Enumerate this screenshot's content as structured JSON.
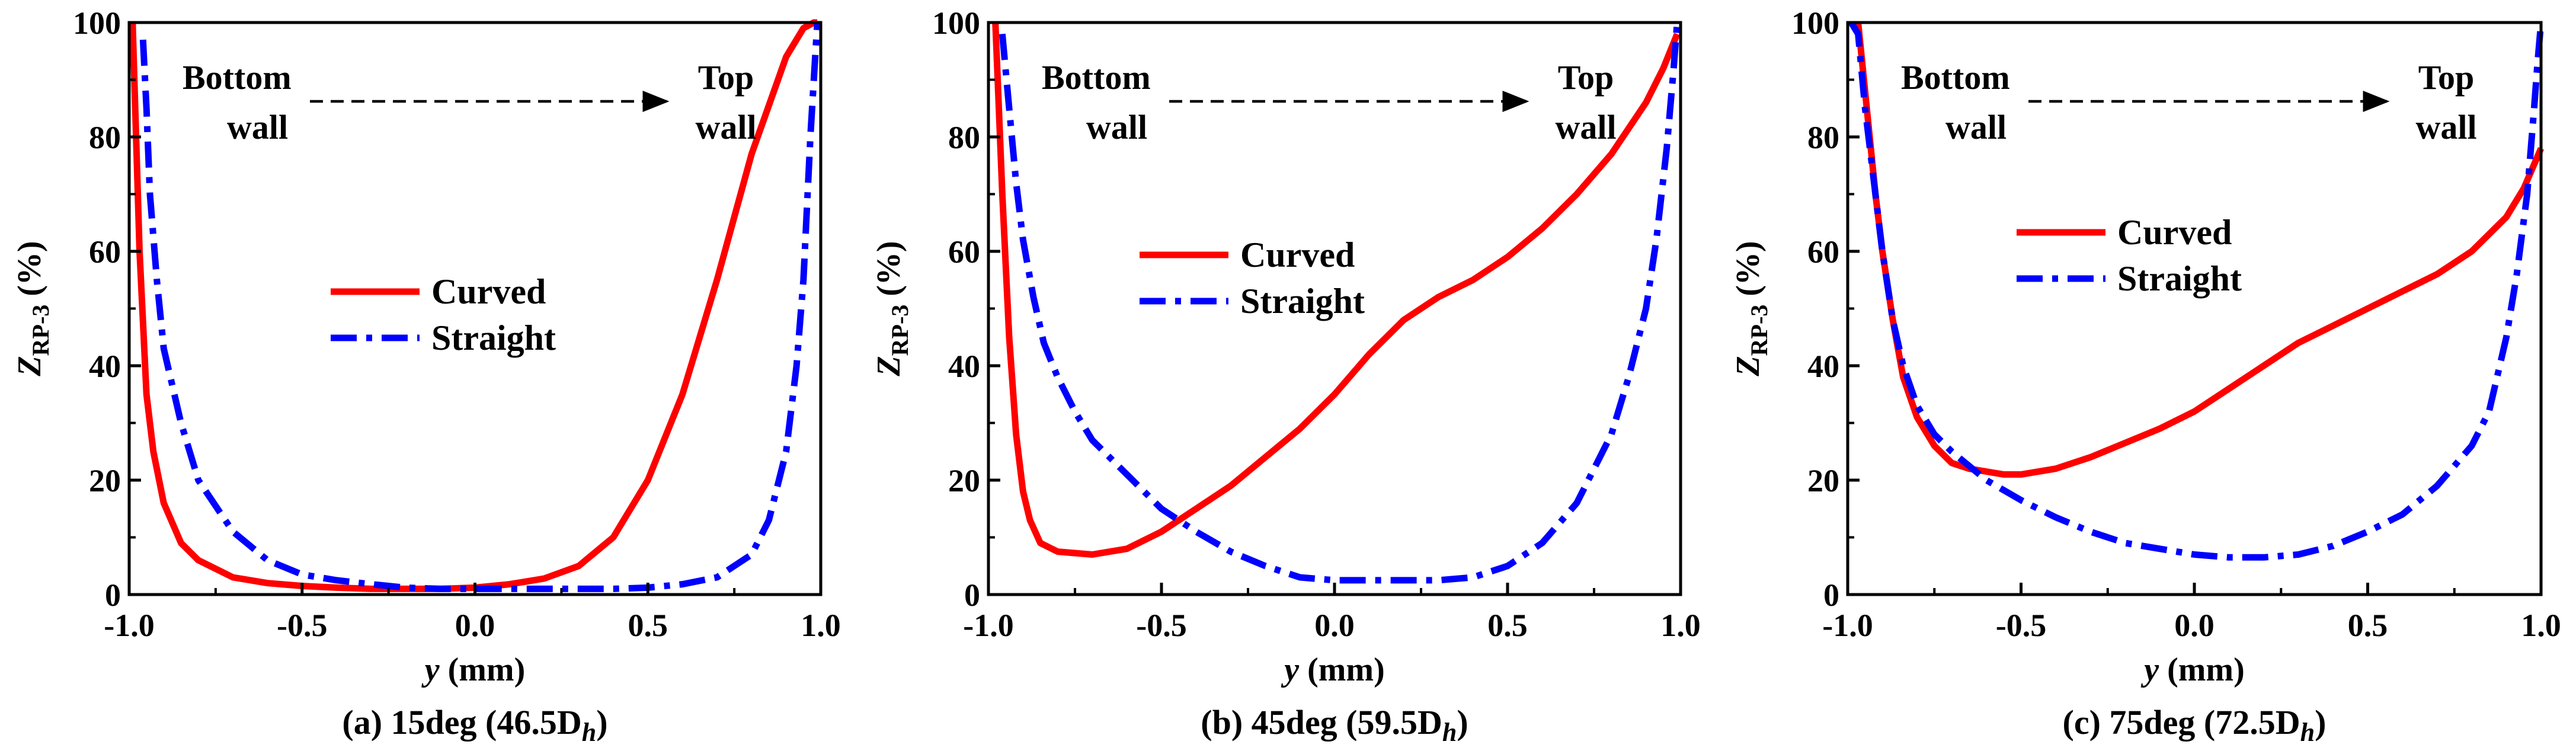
{
  "colors": {
    "curved": "#ff0000",
    "straight": "#0000ff",
    "axis": "#000000",
    "annotation": "#000000"
  },
  "chart_data": [
    {
      "type": "line",
      "panel_label": "(a) 15deg (46.5D",
      "panel_label_sub": "h",
      "panel_label_close": ")",
      "xlabel": "y",
      "xlabel_unit": " (mm)",
      "ylabel_main": "Z",
      "ylabel_sub": "RP-3",
      "ylabel_unit": " (%)",
      "xlim": [
        -1.0,
        1.0
      ],
      "ylim": [
        0,
        100
      ],
      "x_ticks": [
        "-1.0",
        "-0.5",
        "0.0",
        "0.5",
        "1.0"
      ],
      "y_ticks": [
        "0",
        "20",
        "40",
        "60",
        "80",
        "100"
      ],
      "annotation": {
        "left_line1": "Bottom",
        "left_line2": "wall",
        "right_line1": "Top",
        "right_line2": "wall"
      },
      "legend": {
        "position": "center",
        "entries": [
          "Curved",
          "Straight"
        ]
      },
      "series": [
        {
          "name": "Curved",
          "x": [
            -0.99,
            -0.97,
            -0.95,
            -0.93,
            -0.9,
            -0.85,
            -0.8,
            -0.7,
            -0.6,
            -0.5,
            -0.4,
            -0.3,
            -0.2,
            -0.1,
            0.0,
            0.1,
            0.2,
            0.3,
            0.4,
            0.5,
            0.6,
            0.7,
            0.8,
            0.9,
            0.95,
            0.98,
            0.99
          ],
          "y": [
            100,
            60,
            35,
            25,
            16,
            9,
            6,
            3,
            2,
            1.5,
            1.2,
            1.0,
            1.0,
            1.0,
            1.2,
            1.8,
            2.8,
            5,
            10,
            20,
            35,
            55,
            77,
            94,
            99,
            100,
            100
          ]
        },
        {
          "name": "Straight",
          "x": [
            -0.96,
            -0.95,
            -0.94,
            -0.92,
            -0.9,
            -0.85,
            -0.8,
            -0.7,
            -0.6,
            -0.5,
            -0.4,
            -0.3,
            -0.2,
            -0.1,
            0.0,
            0.1,
            0.2,
            0.3,
            0.4,
            0.5,
            0.6,
            0.7,
            0.8,
            0.85,
            0.9,
            0.93,
            0.95,
            0.97,
            0.985,
            0.99
          ],
          "y": [
            97,
            85,
            70,
            55,
            43,
            30,
            20,
            11,
            6,
            3.5,
            2.5,
            1.8,
            1.2,
            1.0,
            1.0,
            1.0,
            1.0,
            1.0,
            1.0,
            1.2,
            1.8,
            3,
            7,
            13,
            25,
            40,
            55,
            80,
            95,
            100
          ]
        }
      ]
    },
    {
      "type": "line",
      "panel_label": "(b) 45deg (59.5D",
      "panel_label_sub": "h",
      "panel_label_close": ")",
      "xlabel": "y",
      "xlabel_unit": " (mm)",
      "ylabel_main": "Z",
      "ylabel_sub": "RP-3",
      "ylabel_unit": " (%)",
      "xlim": [
        -1.0,
        1.0
      ],
      "ylim": [
        0,
        100
      ],
      "x_ticks": [
        "-1.0",
        "-0.5",
        "0.0",
        "0.5",
        "1.0"
      ],
      "y_ticks": [
        "0",
        "20",
        "40",
        "60",
        "80",
        "100"
      ],
      "annotation": {
        "left_line1": "Bottom",
        "left_line2": "wall",
        "right_line1": "Top",
        "right_line2": "wall"
      },
      "legend": {
        "position": "center",
        "entries": [
          "Curved",
          "Straight"
        ]
      },
      "series": [
        {
          "name": "Curved",
          "x": [
            -0.98,
            -0.96,
            -0.94,
            -0.92,
            -0.9,
            -0.88,
            -0.85,
            -0.8,
            -0.7,
            -0.6,
            -0.5,
            -0.4,
            -0.3,
            -0.2,
            -0.1,
            0.0,
            0.1,
            0.2,
            0.3,
            0.4,
            0.5,
            0.6,
            0.7,
            0.8,
            0.9,
            0.95,
            0.99
          ],
          "y": [
            100,
            70,
            45,
            28,
            18,
            13,
            9,
            7.5,
            7,
            8,
            11,
            15,
            19,
            24,
            29,
            35,
            42,
            48,
            52,
            55,
            59,
            64,
            70,
            77,
            86,
            92,
            98
          ]
        },
        {
          "name": "Straight",
          "x": [
            -0.96,
            -0.94,
            -0.92,
            -0.9,
            -0.87,
            -0.84,
            -0.8,
            -0.75,
            -0.7,
            -0.6,
            -0.5,
            -0.4,
            -0.3,
            -0.2,
            -0.1,
            0.0,
            0.1,
            0.2,
            0.3,
            0.4,
            0.5,
            0.6,
            0.7,
            0.8,
            0.85,
            0.9,
            0.93,
            0.96,
            0.98,
            0.99
          ],
          "y": [
            98,
            85,
            72,
            62,
            52,
            44,
            38,
            32,
            27,
            21,
            15,
            11,
            7.5,
            5,
            3,
            2.5,
            2.5,
            2.5,
            2.5,
            3,
            5,
            9,
            16,
            28,
            38,
            50,
            62,
            78,
            92,
            100
          ]
        }
      ]
    },
    {
      "type": "line",
      "panel_label": "(c) 75deg (72.5D",
      "panel_label_sub": "h",
      "panel_label_close": ")",
      "xlabel": "y",
      "xlabel_unit": " (mm)",
      "ylabel_main": "Z",
      "ylabel_sub": "RP-3",
      "ylabel_unit": " (%)",
      "xlim": [
        -1.0,
        1.0
      ],
      "ylim": [
        0,
        100
      ],
      "x_ticks": [
        "-1.0",
        "-0.5",
        "0.0",
        "0.5",
        "1.0"
      ],
      "y_ticks": [
        "0",
        "20",
        "40",
        "60",
        "80",
        "100"
      ],
      "annotation": {
        "left_line1": "Bottom",
        "left_line2": "wall",
        "right_line1": "Top",
        "right_line2": "wall"
      },
      "legend": {
        "position": "center",
        "entries": [
          "Curved",
          "Straight"
        ]
      },
      "series": [
        {
          "name": "Curved",
          "x": [
            -0.97,
            -0.95,
            -0.92,
            -0.9,
            -0.87,
            -0.84,
            -0.8,
            -0.75,
            -0.7,
            -0.65,
            -0.6,
            -0.55,
            -0.5,
            -0.4,
            -0.3,
            -0.2,
            -0.1,
            0.0,
            0.1,
            0.2,
            0.3,
            0.4,
            0.5,
            0.6,
            0.7,
            0.8,
            0.9,
            0.95,
            1.0
          ],
          "y": [
            100,
            88,
            70,
            60,
            48,
            38,
            31,
            26,
            23,
            22,
            21.5,
            21,
            21,
            22,
            24,
            26.5,
            29,
            32,
            36,
            40,
            44,
            47,
            50,
            53,
            56,
            60,
            66,
            71,
            78
          ]
        },
        {
          "name": "Straight",
          "x": [
            -0.99,
            -0.97,
            -0.95,
            -0.92,
            -0.9,
            -0.87,
            -0.84,
            -0.8,
            -0.75,
            -0.7,
            -0.6,
            -0.5,
            -0.4,
            -0.3,
            -0.2,
            -0.1,
            0.0,
            0.1,
            0.2,
            0.3,
            0.4,
            0.5,
            0.6,
            0.7,
            0.8,
            0.85,
            0.9,
            0.93,
            0.96,
            0.98,
            0.99,
            1.0
          ],
          "y": [
            100,
            98,
            85,
            70,
            60,
            48,
            40,
            33,
            28,
            25,
            20,
            16.5,
            13.5,
            11,
            9,
            8,
            7,
            6.5,
            6.5,
            7,
            8.5,
            11,
            14,
            19,
            26,
            32,
            45,
            56,
            70,
            85,
            93,
            100
          ]
        }
      ]
    }
  ]
}
